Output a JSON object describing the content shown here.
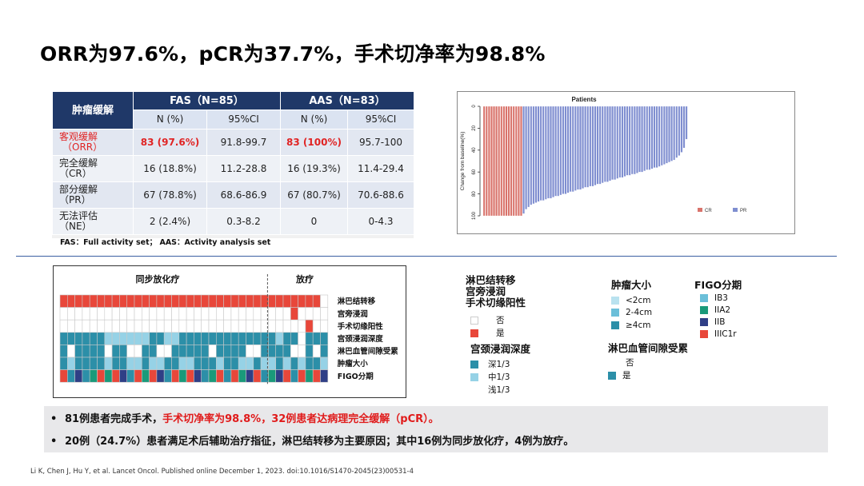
{
  "title": "ORR为97.6%，pCR为37.7%，手术切净率为98.8%",
  "table": {
    "corner": "肿瘤缓解",
    "groups": [
      "FAS（N=85）",
      "AAS（N=83）"
    ],
    "subheaders": [
      "N (%)",
      "95%CI",
      "N (%)",
      "95%CI"
    ],
    "rows": [
      {
        "label1": "客观缓解",
        "label2": "（ORR）",
        "highlight": true,
        "cells": [
          "83 (97.6%)",
          "91.8-99.7",
          "83 (100%)",
          "95.7-100"
        ]
      },
      {
        "label1": "完全缓解",
        "label2": "（CR）",
        "highlight": false,
        "cells": [
          "16 (18.8%)",
          "11.2-28.8",
          "16 (19.3%)",
          "11.4-29.4"
        ]
      },
      {
        "label1": "部分缓解",
        "label2": "（PR）",
        "highlight": false,
        "cells": [
          "67 (78.8%)",
          "68.6-86.9",
          "67 (80.7%)",
          "70.6-88.6"
        ]
      },
      {
        "label1": "无法评估",
        "label2": "（NE）",
        "highlight": false,
        "cells": [
          "2 (2.4%)",
          "0.3-8.2",
          "0",
          "0-4.3"
        ]
      }
    ],
    "note": "FAS：Full activity set；   AAS：Activity analysis set"
  },
  "chart_data": {
    "type": "bar",
    "title": "Patients",
    "ylabel": "Change from baseline(%)",
    "ylim": [
      -100,
      0
    ],
    "yticks": [
      0,
      -20,
      -40,
      -60,
      -80,
      -100
    ],
    "series": [
      {
        "name": "CR",
        "color": "#d9736b",
        "count": 16,
        "values": [
          -100,
          -100,
          -100,
          -100,
          -100,
          -100,
          -100,
          -100,
          -100,
          -100,
          -100,
          -100,
          -100,
          -100,
          -100,
          -100
        ]
      },
      {
        "name": "PR",
        "color": "#7f8ed0",
        "count": 67,
        "values": [
          -98,
          -94,
          -92,
          -90,
          -89,
          -88,
          -87,
          -86,
          -86,
          -85,
          -84,
          -84,
          -83,
          -82,
          -82,
          -81,
          -80,
          -80,
          -79,
          -78,
          -78,
          -77,
          -76,
          -76,
          -75,
          -74,
          -74,
          -73,
          -73,
          -72,
          -71,
          -71,
          -70,
          -69,
          -69,
          -68,
          -67,
          -67,
          -66,
          -65,
          -65,
          -64,
          -63,
          -63,
          -62,
          -62,
          -61,
          -60,
          -60,
          -59,
          -58,
          -58,
          -57,
          -56,
          -56,
          -55,
          -54,
          -53,
          -52,
          -51,
          -50,
          -49,
          -47,
          -45,
          -42,
          -38,
          -30
        ]
      }
    ],
    "legend": [
      "CR",
      "PR"
    ],
    "legend_position": "bottom-right",
    "grid": false
  },
  "heatmap": {
    "group1": "同步放化疗",
    "group2": "放疗",
    "rows": [
      "淋巴结转移",
      "宫旁浸润",
      "手术切缘阳性",
      "宫颈浸润深度",
      "淋巴血管间隙受累",
      "肿瘤大小",
      "FIGO分期"
    ],
    "colors": {
      "W": "#ffffff",
      "R": "#e8473a",
      "D": "#2c8fa8",
      "L": "#96d2e6",
      "M": "#6bbfd9",
      "T": "#1a9a7a",
      "N": "#2f3f86"
    },
    "grid": [
      "RRRRRRRRRRRRRRRRRRRRRRRRRRRRRRRRRRR",
      "WWWWWWWWWWWWWWWWWWWWWWWWWWWWWWWRWWWW",
      "WWWWWWWWWWWWWWWWWWWWWWWWWWWWWWWWWRWWW",
      "DDDDDDLLLLLLDDLLDDDDDDDDDDDDDLDDWDDDL",
      "DWDDDDWDDWWDDWWDDDDDWDDDDWWDDDDWWDWDD",
      "DLDDDDLDDLLDLLDDLLDDDLDDLLDLLDLDLDDLD",
      "RDNDTRTRNDRTRNDRTRNDTRDRTNRDTNRDRTRNR"
    ],
    "split_col": 28
  },
  "legend": {
    "group_a": {
      "titles": [
        "淋巴结转移",
        "宫旁浸润",
        "手术切缘阳性"
      ],
      "items": [
        {
          "label": "否",
          "color": "#ffffff"
        },
        {
          "label": "是",
          "color": "#e8473a"
        }
      ]
    },
    "group_b": {
      "title": "宫颈浸润深度",
      "items": [
        {
          "label": "深1/3",
          "color": "#2c8fa8"
        },
        {
          "label": "中1/3",
          "color": "#96d2e6"
        },
        {
          "label": "浅1/3",
          "color": "#ffffff"
        }
      ]
    },
    "group_c": {
      "title": "肿瘤大小",
      "items": [
        {
          "label": "<2cm",
          "color": "#b9e2ef"
        },
        {
          "label": "2-4cm",
          "color": "#6bbfd9"
        },
        {
          "label": "≥4cm",
          "color": "#2c8fa8"
        }
      ]
    },
    "group_d": {
      "title": "FIGO分期",
      "items": [
        {
          "label": "IB3",
          "color": "#6bbfd9"
        },
        {
          "label": "IIA2",
          "color": "#1a9a7a"
        },
        {
          "label": "IIB",
          "color": "#2f3f86"
        },
        {
          "label": "IIIC1r",
          "color": "#e8473a"
        }
      ]
    },
    "group_e": {
      "title": "淋巴血管间隙受累",
      "items": [
        {
          "label": "否",
          "color": "#ffffff"
        },
        {
          "label": "是",
          "color": "#2c8fa8"
        }
      ]
    }
  },
  "summary": {
    "line1_a": "81例患者完成手术，",
    "line1_b": "手术切净率为98.8%，",
    "line1_c": "32例患者达病理完全缓解（pCR）。",
    "line2": "20例（24.7%）患者满足术后辅助治疗指征，淋巴结转移为主要原因；其中16例为同步放化疗，4例为放疗。"
  },
  "reference": "Li K, Chen J, Hu Y, et al. Lancet Oncol. Published online December 1, 2023.  doi:10.1016/S1470-2045(23)00531-4"
}
